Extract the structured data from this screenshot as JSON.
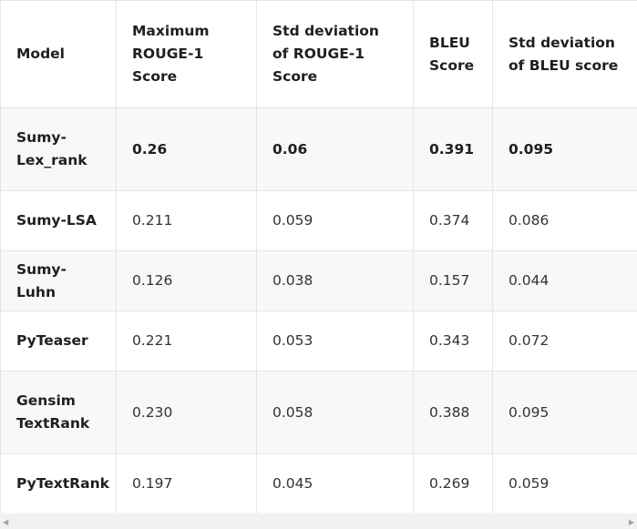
{
  "table": {
    "headers": [
      "Model",
      "Maximum ROUGE-1 Score",
      "Std deviation of ROUGE-1 Score",
      "BLEU Score",
      "Std deviation of BLEU score"
    ],
    "rows": [
      [
        "Sumy-Lex_rank",
        "0.26",
        "0.06",
        "0.391",
        "0.095"
      ],
      [
        "Sumy-LSA",
        "0.211",
        "0.059",
        "0.374",
        "0.086"
      ],
      [
        "Sumy-Luhn",
        "0.126",
        "0.038",
        "0.157",
        "0.044"
      ],
      [
        "PyTeaser",
        "0.221",
        "0.053",
        "0.343",
        "0.072"
      ],
      [
        "Gensim TextRank",
        "0.230",
        "0.058",
        "0.388",
        "0.095"
      ],
      [
        "PyTextRank",
        "0.197",
        "0.045",
        "0.269",
        "0.059"
      ]
    ]
  },
  "scrollbar": {
    "left_icon": "scroll-left-arrow-icon",
    "right_icon": "scroll-right-arrow-icon"
  }
}
